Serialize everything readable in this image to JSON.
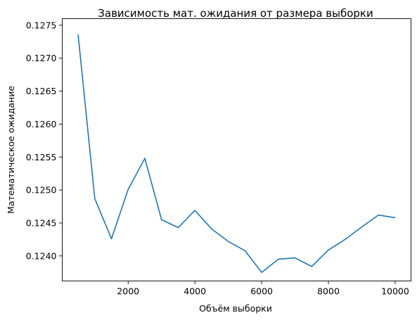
{
  "chart_data": {
    "type": "line",
    "title": "Зависимость мат. ожидания от размера выборки",
    "xlabel": "Объём выборки",
    "ylabel": "Математическое ожидание",
    "xlim": [
      25,
      10475
    ],
    "ylim": [
      0.12362,
      0.1276
    ],
    "grid": false,
    "xticks": [
      2000,
      4000,
      6000,
      8000,
      10000
    ],
    "xtick_labels": [
      "2000",
      "4000",
      "6000",
      "8000",
      "10000"
    ],
    "yticks": [
      0.124,
      0.1245,
      0.125,
      0.1255,
      0.126,
      0.1265,
      0.127,
      0.1275
    ],
    "ytick_labels": [
      "0.1240",
      "0.1245",
      "0.1250",
      "0.1255",
      "0.1260",
      "0.1265",
      "0.1270",
      "0.1275"
    ],
    "colors": {
      "line": "#1f77b4"
    },
    "series": [
      {
        "x": [
          500,
          1000,
          1500,
          2000,
          2500,
          3000,
          3500,
          4000,
          4500,
          5000,
          5500,
          6000,
          6500,
          7000,
          7500,
          8000,
          8500,
          9000,
          9500,
          10000
        ],
        "y": [
          0.12736,
          0.12487,
          0.12426,
          0.12501,
          0.12548,
          0.12455,
          0.12443,
          0.12469,
          0.12441,
          0.12422,
          0.12408,
          0.12375,
          0.12395,
          0.12397,
          0.12384,
          0.12409,
          0.12425,
          0.12444,
          0.12462,
          0.12458
        ]
      }
    ]
  }
}
